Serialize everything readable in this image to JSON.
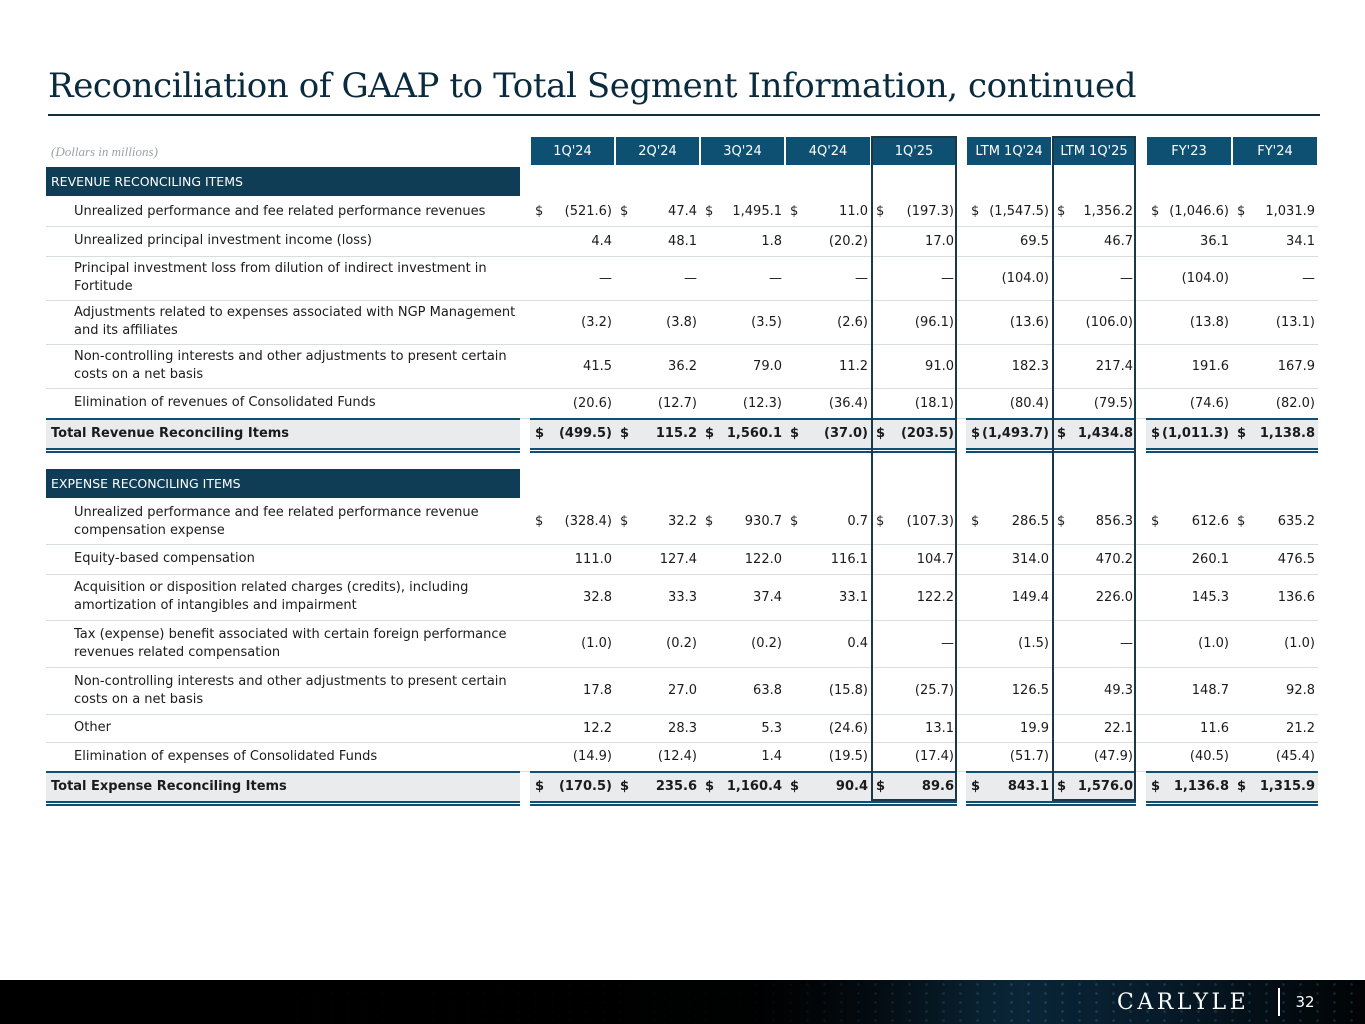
{
  "title": "Reconciliation of GAAP to Total Segment Information, continued",
  "units_note": "(Dollars in millions)",
  "columns": [
    "1Q'24",
    "2Q'24",
    "3Q'24",
    "4Q'24",
    "1Q'25",
    "LTM 1Q'24",
    "LTM 1Q'25",
    "FY'23",
    "FY'24"
  ],
  "revenue": {
    "header": "REVENUE RECONCILING ITEMS",
    "rows": [
      {
        "label": "Unrealized performance and fee related performance revenues",
        "dollar": true,
        "values": [
          "(521.6)",
          "47.4",
          "1,495.1",
          "11.0",
          "(197.3)",
          "(1,547.5)",
          "1,356.2",
          "(1,046.6)",
          "1,031.9"
        ]
      },
      {
        "label": "Unrealized principal investment income (loss)",
        "dollar": false,
        "values": [
          "4.4",
          "48.1",
          "1.8",
          "(20.2)",
          "17.0",
          "69.5",
          "46.7",
          "36.1",
          "34.1"
        ]
      },
      {
        "label": "Principal investment loss from dilution of indirect investment in Fortitude",
        "dollar": false,
        "values": [
          "—",
          "—",
          "—",
          "—",
          "—",
          "(104.0)",
          "—",
          "(104.0)",
          "—"
        ]
      },
      {
        "label": "Adjustments related to expenses associated with NGP Management and its affiliates",
        "dollar": false,
        "values": [
          "(3.2)",
          "(3.8)",
          "(3.5)",
          "(2.6)",
          "(96.1)",
          "(13.6)",
          "(106.0)",
          "(13.8)",
          "(13.1)"
        ]
      },
      {
        "label": "Non-controlling interests and other adjustments to present certain costs on a net basis",
        "dollar": false,
        "values": [
          "41.5",
          "36.2",
          "79.0",
          "11.2",
          "91.0",
          "182.3",
          "217.4",
          "191.6",
          "167.9"
        ]
      },
      {
        "label": "Elimination of revenues of Consolidated Funds",
        "dollar": false,
        "values": [
          "(20.6)",
          "(12.7)",
          "(12.3)",
          "(36.4)",
          "(18.1)",
          "(80.4)",
          "(79.5)",
          "(74.6)",
          "(82.0)"
        ]
      }
    ],
    "total": {
      "label": "Total Revenue Reconciling Items",
      "values": [
        "(499.5)",
        "115.2",
        "1,560.1",
        "(37.0)",
        "(203.5)",
        "(1,493.7)",
        "1,434.8",
        "(1,011.3)",
        "1,138.8"
      ]
    }
  },
  "expense": {
    "header": "EXPENSE RECONCILING ITEMS",
    "rows": [
      {
        "label": "Unrealized performance and fee related performance revenue compensation expense",
        "dollar": true,
        "values": [
          "(328.4)",
          "32.2",
          "930.7",
          "0.7",
          "(107.3)",
          "286.5",
          "856.3",
          "612.6",
          "635.2"
        ]
      },
      {
        "label": "Equity-based compensation",
        "dollar": false,
        "values": [
          "111.0",
          "127.4",
          "122.0",
          "116.1",
          "104.7",
          "314.0",
          "470.2",
          "260.1",
          "476.5"
        ]
      },
      {
        "label": "Acquisition or disposition related charges (credits), including amortization of intangibles and impairment",
        "dollar": false,
        "values": [
          "32.8",
          "33.3",
          "37.4",
          "33.1",
          "122.2",
          "149.4",
          "226.0",
          "145.3",
          "136.6"
        ]
      },
      {
        "label": "Tax (expense) benefit associated with certain foreign performance revenues related compensation",
        "dollar": false,
        "values": [
          "(1.0)",
          "(0.2)",
          "(0.2)",
          "0.4",
          "—",
          "(1.5)",
          "—",
          "(1.0)",
          "(1.0)"
        ]
      },
      {
        "label": "Non-controlling interests and other adjustments to present certain costs on a net basis",
        "dollar": false,
        "values": [
          "17.8",
          "27.0",
          "63.8",
          "(15.8)",
          "(25.7)",
          "126.5",
          "49.3",
          "148.7",
          "92.8"
        ]
      },
      {
        "label": "Other",
        "dollar": false,
        "values": [
          "12.2",
          "28.3",
          "5.3",
          "(24.6)",
          "13.1",
          "19.9",
          "22.1",
          "11.6",
          "21.2"
        ]
      },
      {
        "label": "Elimination of expenses of Consolidated Funds",
        "dollar": false,
        "values": [
          "(14.9)",
          "(12.4)",
          "1.4",
          "(19.5)",
          "(17.4)",
          "(51.7)",
          "(47.9)",
          "(40.5)",
          "(45.4)"
        ]
      }
    ],
    "total": {
      "label": "Total Expense Reconciling Items",
      "values": [
        "(170.5)",
        "235.6",
        "1,160.4",
        "90.4",
        "89.6",
        "843.1",
        "1,576.0",
        "1,136.8",
        "1,315.9"
      ]
    }
  },
  "currency_symbol": "$",
  "footer": {
    "logo": "CARLYLE",
    "page": "32"
  },
  "colors": {
    "header_fill": "#0e5072",
    "section_fill": "#0e3d55",
    "title": "#0a2b3d",
    "total_band": "#e9ebec"
  }
}
